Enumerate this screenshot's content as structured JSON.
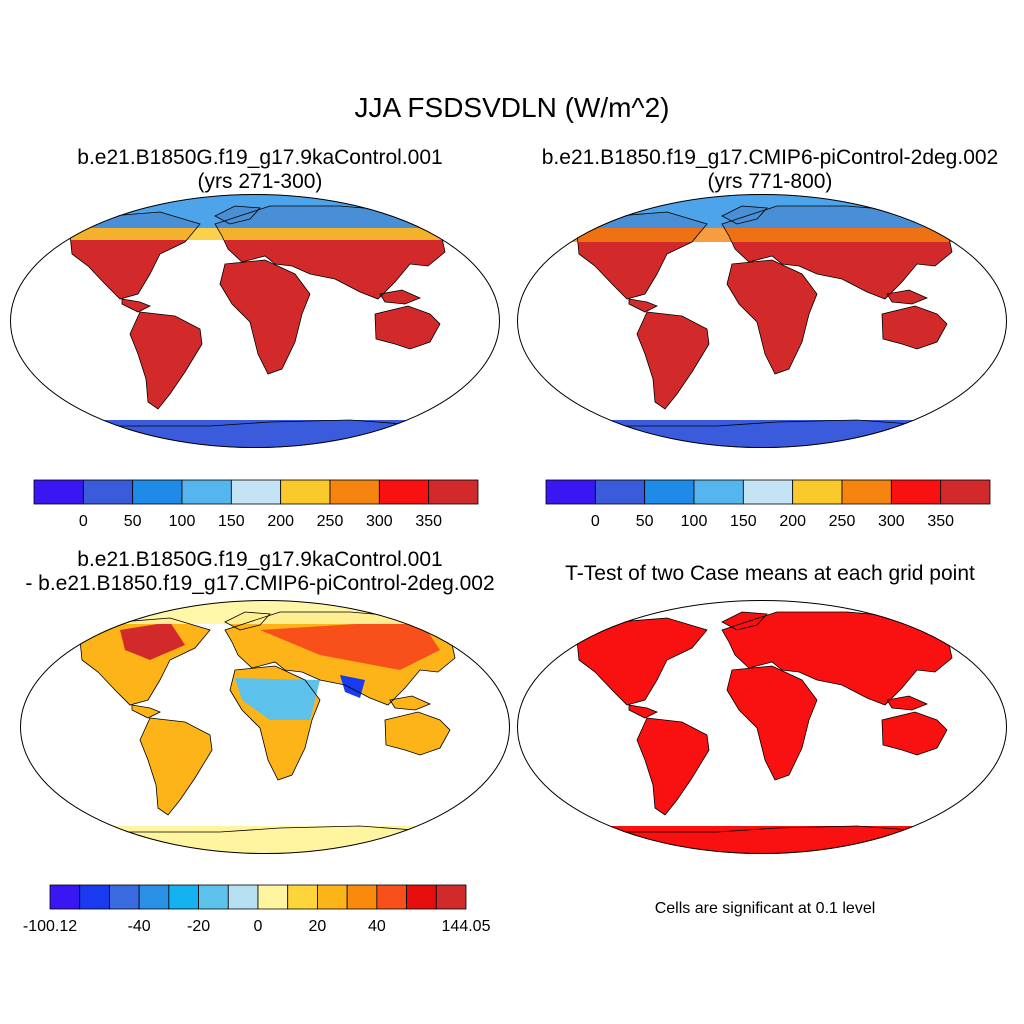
{
  "figure": {
    "title": "JJA FSDSVDLN (W/m^2)"
  },
  "panels": [
    {
      "id": "case1",
      "line1": "b.e21.B1850G.f19_g17.9kaControl.001",
      "line2": "(yrs 271-300)"
    },
    {
      "id": "case2",
      "line1": "b.e21.B1850.f19_g17.CMIP6-piControl-2deg.002",
      "line2": "(yrs 771-800)"
    },
    {
      "id": "diff",
      "line1": "b.e21.B1850G.f19_g17.9kaControl.001",
      "line2": "- b.e21.B1850.f19_g17.CMIP6-piControl-2deg.002"
    },
    {
      "id": "ttest",
      "line1": "T-Test of two Case means at each grid point",
      "note": "Cells are significant at 0.1 level"
    }
  ],
  "colorbars": {
    "abs": {
      "colors": [
        "#3a17f2",
        "#3a5cdc",
        "#1e8be8",
        "#56b4ee",
        "#c4e3f4",
        "#fac92c",
        "#f5850f",
        "#f91010",
        "#d22a2a"
      ],
      "labels": [
        "0",
        "50",
        "100",
        "150",
        "200",
        "250",
        "300",
        "350"
      ]
    },
    "diff": {
      "colors": [
        "#3a17f2",
        "#1a3af0",
        "#3a6ae0",
        "#2a90e6",
        "#14b2f0",
        "#5cc2ec",
        "#b6dff2",
        "#fff5a0",
        "#fdd43a",
        "#fcb418",
        "#fa8a0c",
        "#f8501a",
        "#e60d0d",
        "#d02a2a"
      ],
      "labels": [
        "-100.12",
        "-40",
        "-20",
        "0",
        "20",
        "40",
        "144.05"
      ]
    }
  }
}
